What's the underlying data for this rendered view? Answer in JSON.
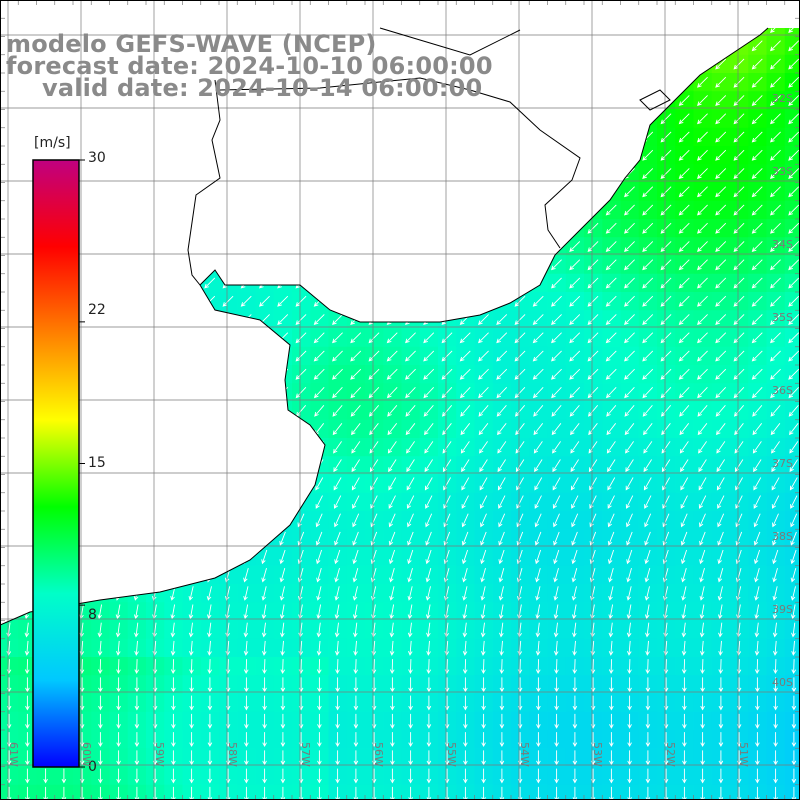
{
  "title": {
    "line1": "modelo GEFS-WAVE (NCEP)",
    "line2": "forecast date: 2024-10-10 06:00:00",
    "line3": "valid date: 2024-10-14 06:00:00"
  },
  "colorbar": {
    "unit": "[m/s]",
    "min": 0,
    "max": 30,
    "ticks": [
      "30",
      "22",
      "15",
      "8",
      "0"
    ],
    "tick_values": [
      30,
      22,
      15,
      8,
      0
    ],
    "color_stops": [
      "#0000ff",
      "#00c8ff",
      "#00ffc8",
      "#00ff00",
      "#ffff00",
      "#ff8000",
      "#ff0000",
      "#c00080"
    ]
  },
  "graticule": {
    "lat_labels": [
      "32S",
      "33S",
      "34S",
      "35S",
      "36S",
      "37S",
      "38S",
      "39S",
      "40S"
    ],
    "lon_labels": [
      "61W",
      "60W",
      "59W",
      "58W",
      "57W",
      "56W",
      "55W",
      "54W",
      "53W",
      "52W",
      "51W"
    ]
  },
  "field": {
    "quantity": "wind speed",
    "description": "wind speed field with direction arrows over the Rio de la Plata / southern Brazil coast"
  }
}
